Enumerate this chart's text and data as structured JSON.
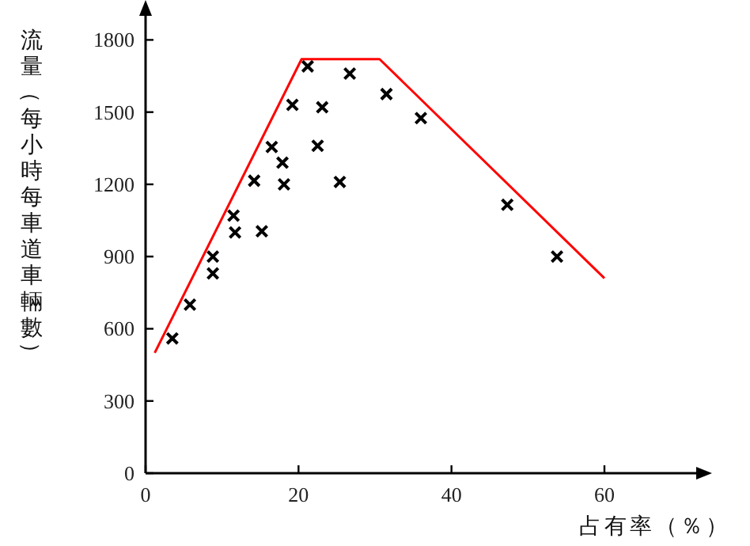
{
  "chart_data": {
    "type": "scatter",
    "xlabel": "占有率（％）",
    "ylabel": "流量（每小時每車道車輛數）",
    "xlim": [
      0,
      72
    ],
    "ylim": [
      0,
      1900
    ],
    "xticks": [
      0,
      20,
      40,
      60
    ],
    "yticks": [
      0,
      300,
      600,
      900,
      1200,
      1500,
      1800
    ],
    "grid": false,
    "series": [
      {
        "marker": "cross",
        "color": "#000000",
        "x": [
          3.5,
          5.8,
          8.8,
          8.8,
          11.5,
          11.7,
          14.2,
          15.2,
          16.5,
          17.9,
          18.1,
          19.2,
          21.2,
          22.5,
          23.1,
          25.4,
          26.7,
          31.5,
          36,
          47.3,
          53.8
        ],
        "values": [
          560,
          700,
          900,
          830,
          1070,
          1000,
          1215,
          1005,
          1355,
          1290,
          1200,
          1530,
          1690,
          1360,
          1520,
          1210,
          1660,
          1575,
          1475,
          1115,
          900
        ]
      },
      {
        "type": "line",
        "marker": "none",
        "color": "#ff0000",
        "x": [
          1.2,
          20.4,
          30.6,
          60
        ],
        "values": [
          500,
          1720,
          1720,
          810
        ]
      }
    ]
  }
}
